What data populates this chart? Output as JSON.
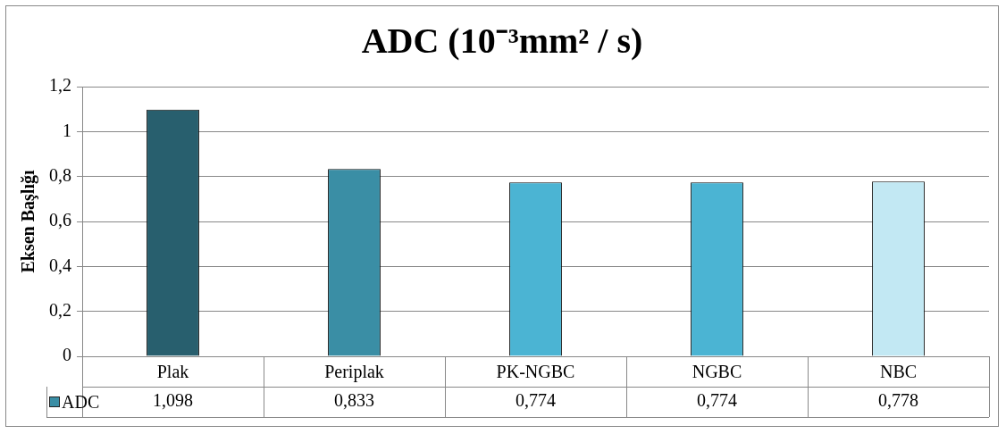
{
  "chart_data": {
    "type": "bar",
    "title": "ADC (10⁻³mm² / s)",
    "ylabel": "Eksen Başlığı",
    "categories": [
      "Plak",
      "Periplak",
      "PK-NGBC",
      "NGBC",
      "NBC"
    ],
    "series": [
      {
        "name": "ADC",
        "color": "#3a8ea5",
        "colors": [
          "#285f6e",
          "#3a8ea5",
          "#4bb4d3",
          "#4bb4d3",
          "#c2e8f3"
        ],
        "values": [
          1.098,
          0.833,
          0.774,
          0.774,
          0.778
        ],
        "value_labels": [
          "1,098",
          "0,833",
          "0,774",
          "0,774",
          "0,778"
        ]
      }
    ],
    "ylim": [
      0,
      1.2
    ],
    "yticks": [
      {
        "value": 0,
        "label": "0"
      },
      {
        "value": 0.2,
        "label": "0,2"
      },
      {
        "value": 0.4,
        "label": "0,4"
      },
      {
        "value": 0.6,
        "label": "0,6"
      },
      {
        "value": 0.8,
        "label": "0,8"
      },
      {
        "value": 1,
        "label": "1"
      },
      {
        "value": 1.2,
        "label": "1,2"
      }
    ],
    "grid": "y",
    "legend": "bottom left"
  }
}
